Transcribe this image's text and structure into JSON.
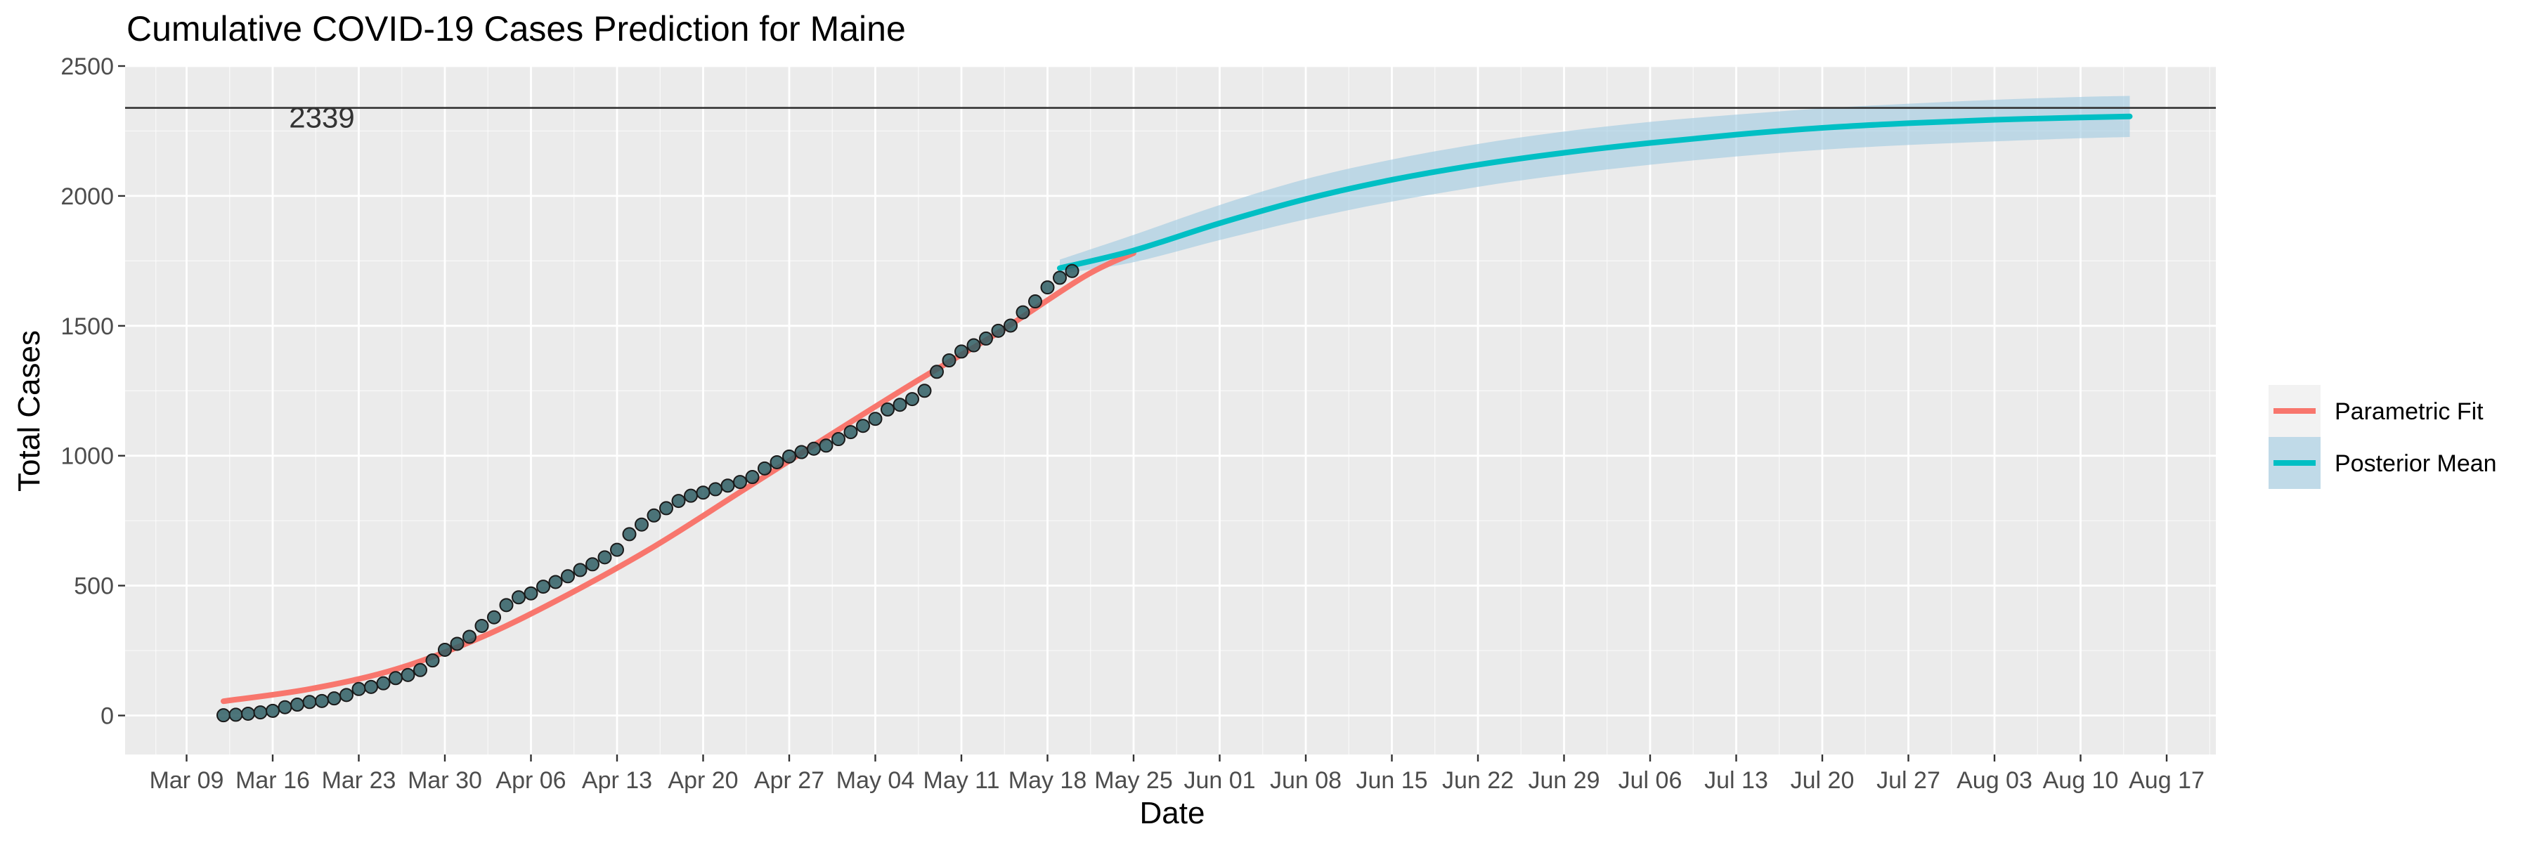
{
  "chart_data": {
    "type": "line",
    "title": "Cumulative COVID-19 Cases Prediction for Maine",
    "xlabel": "Date",
    "ylabel": "Total Cases",
    "x_type": "date",
    "x_range": [
      "2020-03-04",
      "2020-08-21"
    ],
    "ylim": [
      -150,
      2500
    ],
    "y_ticks": [
      0,
      500,
      1000,
      1500,
      2000,
      2500
    ],
    "x_ticks": [
      {
        "date": "2020-03-09",
        "label": "Mar 09"
      },
      {
        "date": "2020-03-16",
        "label": "Mar 16"
      },
      {
        "date": "2020-03-23",
        "label": "Mar 23"
      },
      {
        "date": "2020-03-30",
        "label": "Mar 30"
      },
      {
        "date": "2020-04-06",
        "label": "Apr 06"
      },
      {
        "date": "2020-04-13",
        "label": "Apr 13"
      },
      {
        "date": "2020-04-20",
        "label": "Apr 20"
      },
      {
        "date": "2020-04-27",
        "label": "Apr 27"
      },
      {
        "date": "2020-05-04",
        "label": "May 04"
      },
      {
        "date": "2020-05-11",
        "label": "May 11"
      },
      {
        "date": "2020-05-18",
        "label": "May 18"
      },
      {
        "date": "2020-05-25",
        "label": "May 25"
      },
      {
        "date": "2020-06-01",
        "label": "Jun 01"
      },
      {
        "date": "2020-06-08",
        "label": "Jun 08"
      },
      {
        "date": "2020-06-15",
        "label": "Jun 15"
      },
      {
        "date": "2020-06-22",
        "label": "Jun 22"
      },
      {
        "date": "2020-06-29",
        "label": "Jun 29"
      },
      {
        "date": "2020-07-06",
        "label": "Jul 06"
      },
      {
        "date": "2020-07-13",
        "label": "Jul 13"
      },
      {
        "date": "2020-07-20",
        "label": "Jul 20"
      },
      {
        "date": "2020-07-27",
        "label": "Jul 27"
      },
      {
        "date": "2020-08-03",
        "label": "Aug 03"
      },
      {
        "date": "2020-08-10",
        "label": "Aug 10"
      },
      {
        "date": "2020-08-17",
        "label": "Aug 17"
      }
    ],
    "grid": true,
    "legend_position": "right",
    "hline": {
      "value": 2339,
      "label": "2339"
    },
    "observed": {
      "start_date": "2020-03-12",
      "values": [
        1,
        3,
        7,
        12,
        18,
        32,
        42,
        52,
        56,
        66,
        79,
        102,
        110,
        124,
        144,
        156,
        175,
        212,
        253,
        276,
        303,
        345,
        378,
        425,
        455,
        470,
        496,
        514,
        536,
        560,
        582,
        609,
        638,
        698,
        735,
        770,
        798,
        826,
        846,
        858,
        871,
        885,
        899,
        918,
        951,
        975,
        997,
        1014,
        1027,
        1039,
        1064,
        1091,
        1115,
        1142,
        1178,
        1196,
        1218,
        1250,
        1323,
        1367,
        1401,
        1425,
        1451,
        1481,
        1501,
        1552,
        1594,
        1648,
        1685,
        1711
      ]
    },
    "series": [
      {
        "name": "Parametric Fit",
        "color": "#F8766D",
        "points": [
          [
            "2020-03-12",
            55
          ],
          [
            "2020-03-19",
            102
          ],
          [
            "2020-03-26",
            178
          ],
          [
            "2020-04-02",
            302
          ],
          [
            "2020-04-09",
            465
          ],
          [
            "2020-04-16",
            650
          ],
          [
            "2020-04-23",
            860
          ],
          [
            "2020-04-30",
            1070
          ],
          [
            "2020-05-07",
            1277
          ],
          [
            "2020-05-14",
            1474
          ],
          [
            "2020-05-21",
            1690
          ],
          [
            "2020-05-25",
            1780
          ]
        ]
      },
      {
        "name": "Posterior Mean",
        "color": "#00BFC4",
        "points": [
          [
            "2020-05-19",
            1722
          ],
          [
            "2020-05-25",
            1790
          ],
          [
            "2020-06-01",
            1895
          ],
          [
            "2020-06-08",
            1988
          ],
          [
            "2020-06-15",
            2062
          ],
          [
            "2020-06-22",
            2120
          ],
          [
            "2020-06-29",
            2166
          ],
          [
            "2020-07-06",
            2204
          ],
          [
            "2020-07-13",
            2236
          ],
          [
            "2020-07-20",
            2262
          ],
          [
            "2020-07-27",
            2280
          ],
          [
            "2020-08-03",
            2293
          ],
          [
            "2020-08-10",
            2302
          ],
          [
            "2020-08-14",
            2306
          ]
        ],
        "ribbon": [
          [
            "2020-05-19",
            1700,
            1755
          ],
          [
            "2020-05-25",
            1745,
            1850
          ],
          [
            "2020-06-01",
            1830,
            1965
          ],
          [
            "2020-06-08",
            1910,
            2065
          ],
          [
            "2020-06-15",
            1978,
            2140
          ],
          [
            "2020-06-22",
            2035,
            2200
          ],
          [
            "2020-06-29",
            2082,
            2248
          ],
          [
            "2020-07-06",
            2120,
            2285
          ],
          [
            "2020-07-13",
            2152,
            2313
          ],
          [
            "2020-07-20",
            2178,
            2337
          ],
          [
            "2020-07-27",
            2196,
            2355
          ],
          [
            "2020-08-03",
            2210,
            2370
          ],
          [
            "2020-08-10",
            2222,
            2381
          ],
          [
            "2020-08-14",
            2227,
            2385
          ]
        ]
      }
    ]
  },
  "colors": {
    "panel_background": "#EBEBEB",
    "grid": "#FFFFFF",
    "point_fill": "#2F5E64",
    "point_stroke": "#1A1A1A",
    "ribbon_fill": "#9ECAE1",
    "hline": "#333333"
  }
}
